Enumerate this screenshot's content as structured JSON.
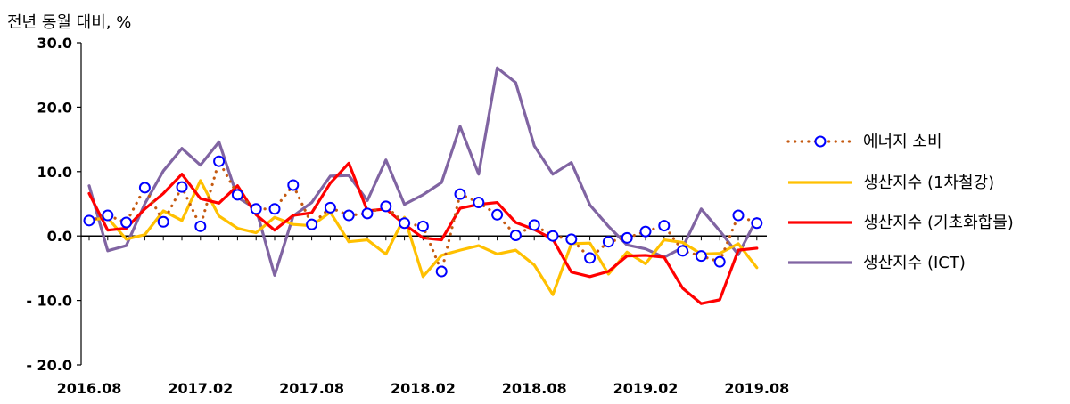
{
  "chart_data": {
    "type": "line",
    "ylabel": "전년 동월 대비, %",
    "ylim": [
      -20,
      30
    ],
    "yticks": [
      30,
      20,
      10,
      0,
      -10,
      -20
    ],
    "ytick_labels": [
      "30.0",
      "20.0",
      "10.0",
      "0.0",
      "- 10.0",
      "- 20.0"
    ],
    "x": [
      "2016.08",
      "2016.09",
      "2016.10",
      "2016.11",
      "2016.12",
      "2017.01",
      "2017.02",
      "2017.03",
      "2017.04",
      "2017.05",
      "2017.06",
      "2017.07",
      "2017.08",
      "2017.09",
      "2017.10",
      "2017.11",
      "2017.12",
      "2018.01",
      "2018.02",
      "2018.03",
      "2018.04",
      "2018.05",
      "2018.06",
      "2018.07",
      "2018.08",
      "2018.09",
      "2018.10",
      "2018.11",
      "2018.12",
      "2019.01",
      "2019.02",
      "2019.03",
      "2019.04",
      "2019.05",
      "2019.06",
      "2019.07",
      "2019.08"
    ],
    "xtick_labels": [
      "2016.08",
      "2017.02",
      "2017.08",
      "2018.02",
      "2018.08",
      "2019.02",
      "2019.08"
    ],
    "legend_position": "right",
    "series": [
      {
        "name": "에너지 소비",
        "color": "#C55A11",
        "style": "dotted-with-markers",
        "marker_color": "#0000FF",
        "values": [
          2.4,
          3.2,
          2.1,
          7.5,
          2.2,
          7.6,
          1.5,
          11.6,
          6.4,
          4.2,
          4.2,
          7.9,
          1.8,
          4.4,
          3.2,
          3.5,
          4.6,
          2.0,
          1.5,
          -5.5,
          6.5,
          5.2,
          3.3,
          0.1,
          1.7,
          0.0,
          -0.5,
          -3.4,
          -0.9,
          -0.3,
          0.7,
          1.6,
          -2.3,
          -3.1,
          -4.0,
          3.2,
          2.0
        ]
      },
      {
        "name": "생산지수 (1차철강)",
        "color": "#FFC000",
        "style": "solid",
        "values": [
          2.5,
          2.8,
          -0.5,
          0.2,
          3.9,
          2.4,
          8.6,
          3.1,
          1.2,
          0.5,
          2.9,
          1.8,
          1.6,
          3.7,
          -0.9,
          -0.6,
          -2.8,
          2.9,
          -6.3,
          -3.0,
          -2.2,
          -1.5,
          -2.8,
          -2.2,
          -4.5,
          -9.1,
          -1.2,
          -1.1,
          -5.9,
          -2.5,
          -4.3,
          -0.6,
          -1.0,
          -2.8,
          -2.7,
          -1.2,
          -4.9
        ]
      },
      {
        "name": "생산지수 (기초화합물)",
        "color": "#FF0000",
        "style": "solid",
        "values": [
          6.6,
          0.9,
          1.2,
          4.2,
          6.6,
          9.6,
          5.8,
          5.1,
          7.8,
          3.3,
          0.9,
          3.2,
          3.6,
          8.2,
          11.3,
          3.9,
          4.2,
          1.8,
          -0.3,
          -0.6,
          4.3,
          4.9,
          5.2,
          2.1,
          1.0,
          -0.5,
          -5.6,
          -6.3,
          -5.5,
          -3.1,
          -3.0,
          -3.3,
          -8.1,
          -10.5,
          -9.9,
          -2.2,
          -1.9
        ]
      },
      {
        "name": "생산지수 (ICT)",
        "color": "#8064A2",
        "style": "solid",
        "values": [
          7.8,
          -2.3,
          -1.5,
          5.0,
          10.1,
          13.6,
          11.0,
          14.6,
          6.0,
          4.2,
          -6.1,
          3.1,
          5.2,
          9.3,
          9.4,
          5.5,
          11.8,
          4.9,
          6.4,
          8.3,
          17.0,
          9.6,
          26.1,
          23.8,
          14.0,
          9.6,
          11.4,
          4.8,
          1.5,
          -1.4,
          -2.0,
          -3.3,
          -1.8,
          4.2,
          0.8,
          -2.9,
          2.7
        ]
      }
    ]
  }
}
